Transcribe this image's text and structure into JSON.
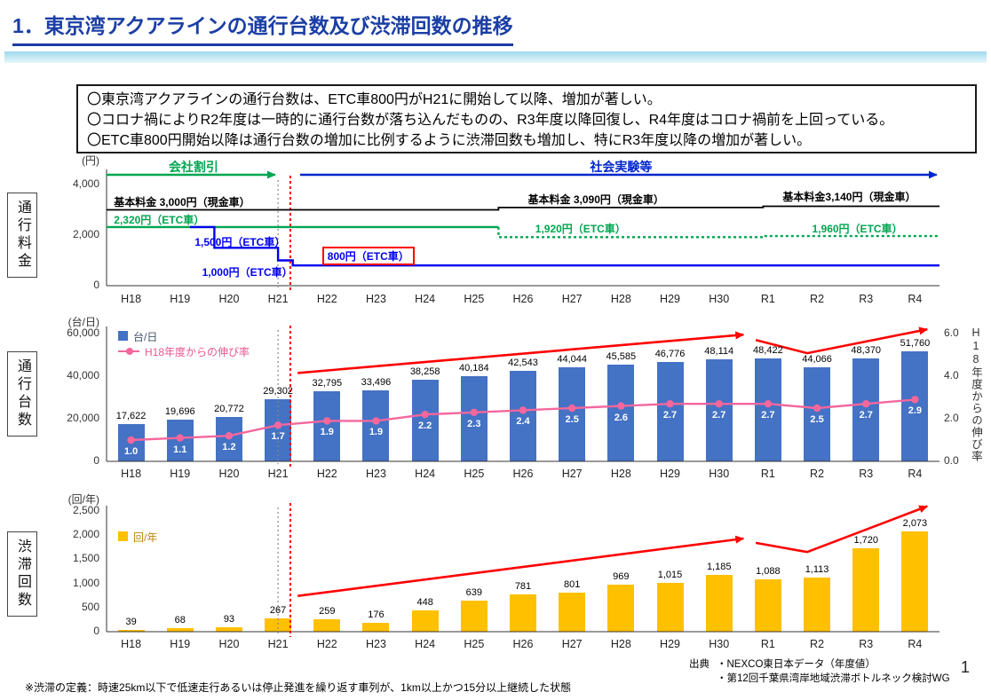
{
  "page": {
    "title": "1．東京湾アクアラインの通行台数及び渋滞回数の推移",
    "page_number": "1",
    "notes": [
      "〇東京湾アクアラインの通行台数は、ETC車800円がH21に開始して以降、増加が著しい。",
      "〇コロナ禍によりR2年度は一時的に通行台数が落ち込んだものの、R3年度以降回復し、R4年度はコロナ禍前を上回っている。",
      "〇ETC車800円開始以降は通行台数の増加に比例するように渋滞回数も増加し、特にR3年度以降の増加が著しい。"
    ],
    "footnote": "※渋滞の定義：時速25km以下で低速走行あるいは停止発進を繰り返す車列が、1km以上かつ15分以上継続した状態",
    "source_label": "出典",
    "sources": [
      "・NEXCO東日本データ（年度値）",
      "・第12回千葉県湾岸地域渋滞ボトルネック検討WG"
    ]
  },
  "sections": [
    {
      "label": "通行料金"
    },
    {
      "label": "通行台数"
    },
    {
      "label": "渋滞回数"
    }
  ],
  "categories": [
    "H18",
    "H19",
    "H20",
    "H21",
    "H22",
    "H23",
    "H24",
    "H25",
    "H26",
    "H27",
    "H28",
    "H29",
    "H30",
    "R1",
    "R2",
    "R3",
    "R4"
  ],
  "chart_data": [
    {
      "id": "toll-fee",
      "type": "line",
      "title": "通行料金",
      "unit": "(円)",
      "yticks": [
        0,
        2000,
        4000
      ],
      "ylim": [
        0,
        4300
      ],
      "era_arrows": [
        {
          "label": "会社割引",
          "color": "#00A650",
          "from": -0.5,
          "to": 3.05
        },
        {
          "label": "社会実験等",
          "color": "#0026CC",
          "from": 3.45,
          "to": 16.55
        }
      ],
      "series": [
        {
          "name": "基本料金（現金車）",
          "color": "#000000",
          "dash": "solid",
          "points": [
            [
              -0.5,
              3000
            ],
            [
              7.5,
              3000
            ],
            [
              7.5,
              3090
            ],
            [
              12.9,
              3090
            ],
            [
              12.9,
              3140
            ],
            [
              16.5,
              3140
            ]
          ]
        },
        {
          "name": "ETC車（会社割引期）",
          "color": "#00A650",
          "dash": "solid",
          "points": [
            [
              -0.5,
              2320
            ],
            [
              7.5,
              2320
            ]
          ]
        },
        {
          "name": "ETC車（割引前料金）",
          "color": "#00A650",
          "dash": "dotted",
          "points": [
            [
              7.5,
              2320
            ],
            [
              7.5,
              1920
            ],
            [
              12.9,
              1920
            ],
            [
              12.9,
              1960
            ],
            [
              16.5,
              1960
            ]
          ]
        },
        {
          "name": "ETC車（社会実験割引）",
          "color": "#0000EE",
          "dash": "solid",
          "points": [
            [
              1.2,
              2320
            ],
            [
              1.7,
              2320
            ],
            [
              1.7,
              1500
            ],
            [
              3.0,
              1500
            ],
            [
              3.0,
              1000
            ],
            [
              3.3,
              1000
            ],
            [
              3.3,
              800
            ],
            [
              16.5,
              800
            ]
          ]
        }
      ],
      "labels": [
        {
          "text": "基本料金 3,000円（現金車）",
          "x": -0.35,
          "v": 3350,
          "color": "#000000"
        },
        {
          "text": "基本料金 3,090円（現金車）",
          "x": 8.1,
          "v": 3450,
          "color": "#000000"
        },
        {
          "text": "基本料金3,140円（現金車）",
          "x": 13.3,
          "v": 3560,
          "color": "#000000"
        },
        {
          "text": "2,320円（ETC車）",
          "x": -0.35,
          "v": 2620,
          "color": "#00A650"
        },
        {
          "text": "1,920円（ETC車）",
          "x": 8.25,
          "v": 2280,
          "color": "#00A650"
        },
        {
          "text": "1,960円（ETC車）",
          "x": 13.9,
          "v": 2280,
          "color": "#00A650"
        },
        {
          "text": "1,500円（ETC車）",
          "x": 1.3,
          "v": 1760,
          "color": "#0000EE"
        },
        {
          "text": "1,000円（ETC車）",
          "x": 1.45,
          "v": 560,
          "color": "#0000EE"
        },
        {
          "text": "800円（ETC車）",
          "x": 3.9,
          "v": 1160,
          "color": "#0000EE",
          "box": "#FF0000"
        }
      ]
    },
    {
      "id": "traffic-volume",
      "type": "bar+line",
      "unit_left": "(台/日)",
      "unit_right": "H18年度からの伸び率",
      "ylim_left": [
        0,
        60000
      ],
      "yticks_left": [
        0,
        20000,
        40000,
        60000
      ],
      "ylim_right": [
        0,
        6
      ],
      "yticks_right": [
        0,
        2,
        4,
        6
      ],
      "legend": [
        {
          "label": "台/日",
          "color": "#4472C4",
          "text": "#44546A",
          "type": "bar"
        },
        {
          "label": "H18年度からの伸び率",
          "color": "#F4679D",
          "text": "#E8578F",
          "type": "line"
        }
      ],
      "bars": {
        "name": "台/日",
        "color": "#4472C4",
        "values": [
          17622,
          19696,
          20772,
          29302,
          32795,
          33496,
          38258,
          40184,
          42543,
          44044,
          45585,
          46776,
          48114,
          48422,
          44066,
          48370,
          51760
        ]
      },
      "line": {
        "name": "H18年度からの伸び率",
        "color": "#F4679D",
        "values": [
          1.0,
          1.1,
          1.2,
          1.7,
          1.9,
          1.9,
          2.2,
          2.3,
          2.4,
          2.5,
          2.6,
          2.7,
          2.7,
          2.7,
          2.5,
          2.7,
          2.9
        ]
      },
      "trend_arrows": [
        {
          "points": [
            [
              3.4,
              41500
            ],
            [
              12.5,
              59500
            ]
          ]
        },
        {
          "points": [
            [
              12.75,
              57000
            ],
            [
              13.8,
              50800
            ],
            [
              16.25,
              62000
            ]
          ]
        }
      ]
    },
    {
      "id": "congestion",
      "type": "bar",
      "unit": "(回/年)",
      "ylim": [
        0,
        2500
      ],
      "yticks": [
        0,
        500,
        1000,
        1500,
        2000,
        2500
      ],
      "legend": [
        {
          "label": "回/年",
          "color": "#FFC000",
          "text": "#B8860B",
          "type": "bar"
        }
      ],
      "bars": {
        "name": "回/年",
        "color": "#FFC000",
        "values": [
          39,
          68,
          93,
          267,
          259,
          176,
          448,
          639,
          781,
          801,
          969,
          1015,
          1185,
          1088,
          1113,
          1720,
          2073
        ]
      },
      "trend_arrows": [
        {
          "points": [
            [
              3.4,
              740
            ],
            [
              12.5,
              1930
            ]
          ]
        },
        {
          "points": [
            [
              12.75,
              1840
            ],
            [
              13.8,
              1650
            ],
            [
              16.25,
              2600
            ]
          ]
        }
      ]
    }
  ],
  "colors": {
    "title": "#1B3EA5",
    "bar_blue": "#4472C4",
    "line_pink": "#F4679D",
    "bar_yellow": "#FFC000",
    "arrow_red": "#FF0000",
    "green": "#00A650",
    "etc_blue": "#0000EE"
  }
}
